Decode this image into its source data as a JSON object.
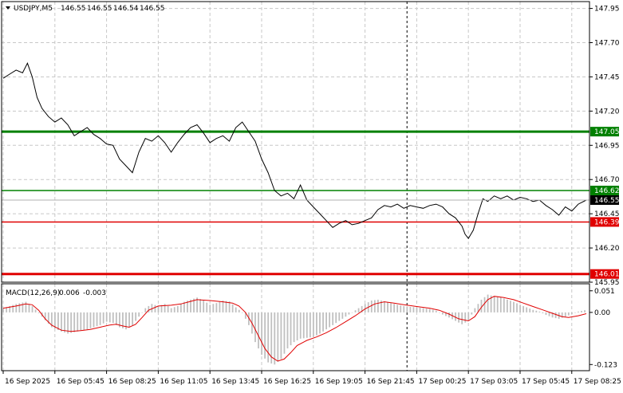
{
  "chart_data": [
    {
      "type": "line",
      "symbol_header": "USDJPY,M5",
      "ohlc": [
        "146.55",
        "146.55",
        "146.54",
        "146.55"
      ],
      "ylim": [
        145.95,
        148.0
      ],
      "y_ticks": [
        "147.95",
        "147.70",
        "147.45",
        "147.20",
        "146.95",
        "146.70",
        "146.45",
        "146.20",
        "145.95"
      ],
      "y_tick_values": [
        147.95,
        147.7,
        147.45,
        147.2,
        146.95,
        146.7,
        146.45,
        146.2,
        145.95
      ],
      "x_tick_labels": [
        "16 Sep 2025",
        "16 Sep 05:45",
        "16 Sep 08:25",
        "16 Sep 11:05",
        "16 Sep 13:45",
        "16 Sep 16:25",
        "16 Sep 19:05",
        "16 Sep 21:45",
        "17 Sep 00:25",
        "17 Sep 03:05",
        "17 Sep 05:45",
        "17 Sep 08:25"
      ],
      "x_tick_index": [
        0,
        32,
        64,
        96,
        128,
        160,
        192,
        224,
        256,
        288,
        320,
        352
      ],
      "bar_count": 362,
      "vline_index": 250,
      "current_price": {
        "label": "146.55",
        "value": 146.55
      },
      "levels": [
        {
          "label": "147.05",
          "value": 147.05,
          "color": "#008000",
          "width": 3
        },
        {
          "label": "146.62",
          "value": 146.62,
          "color": "#008000",
          "width": 1.5
        },
        {
          "label": "146.39",
          "value": 146.39,
          "color": "#e00000",
          "width": 1.5
        },
        {
          "label": "146.01",
          "value": 146.01,
          "color": "#e00000",
          "width": 3
        }
      ],
      "price_series": [
        [
          0,
          147.44
        ],
        [
          4,
          147.47
        ],
        [
          8,
          147.5
        ],
        [
          12,
          147.48
        ],
        [
          15,
          147.55
        ],
        [
          18,
          147.45
        ],
        [
          21,
          147.3
        ],
        [
          24,
          147.22
        ],
        [
          28,
          147.16
        ],
        [
          32,
          147.12
        ],
        [
          36,
          147.15
        ],
        [
          40,
          147.1
        ],
        [
          44,
          147.02
        ],
        [
          48,
          147.05
        ],
        [
          52,
          147.08
        ],
        [
          56,
          147.03
        ],
        [
          60,
          147.0
        ],
        [
          64,
          146.96
        ],
        [
          68,
          146.95
        ],
        [
          72,
          146.85
        ],
        [
          76,
          146.8
        ],
        [
          80,
          146.75
        ],
        [
          84,
          146.9
        ],
        [
          88,
          147.0
        ],
        [
          92,
          146.98
        ],
        [
          96,
          147.02
        ],
        [
          100,
          146.97
        ],
        [
          104,
          146.9
        ],
        [
          108,
          146.97
        ],
        [
          112,
          147.03
        ],
        [
          116,
          147.08
        ],
        [
          120,
          147.1
        ],
        [
          124,
          147.04
        ],
        [
          128,
          146.97
        ],
        [
          132,
          147.0
        ],
        [
          136,
          147.02
        ],
        [
          140,
          146.98
        ],
        [
          144,
          147.08
        ],
        [
          148,
          147.12
        ],
        [
          152,
          147.05
        ],
        [
          156,
          146.98
        ],
        [
          160,
          146.85
        ],
        [
          164,
          146.75
        ],
        [
          168,
          146.62
        ],
        [
          172,
          146.58
        ],
        [
          176,
          146.6
        ],
        [
          180,
          146.56
        ],
        [
          184,
          146.66
        ],
        [
          188,
          146.55
        ],
        [
          192,
          146.5
        ],
        [
          196,
          146.45
        ],
        [
          200,
          146.4
        ],
        [
          204,
          146.35
        ],
        [
          208,
          146.38
        ],
        [
          212,
          146.4
        ],
        [
          216,
          146.37
        ],
        [
          220,
          146.38
        ],
        [
          224,
          146.4
        ],
        [
          228,
          146.42
        ],
        [
          232,
          146.48
        ],
        [
          236,
          146.51
        ],
        [
          240,
          146.5
        ],
        [
          244,
          146.52
        ],
        [
          248,
          146.49
        ],
        [
          252,
          146.51
        ],
        [
          256,
          146.5
        ],
        [
          260,
          146.49
        ],
        [
          264,
          146.51
        ],
        [
          268,
          146.52
        ],
        [
          272,
          146.5
        ],
        [
          276,
          146.45
        ],
        [
          280,
          146.42
        ],
        [
          284,
          146.36
        ],
        [
          286,
          146.3
        ],
        [
          288,
          146.27
        ],
        [
          291,
          146.33
        ],
        [
          294,
          146.45
        ],
        [
          297,
          146.56
        ],
        [
          300,
          146.54
        ],
        [
          304,
          146.58
        ],
        [
          308,
          146.56
        ],
        [
          312,
          146.58
        ],
        [
          316,
          146.55
        ],
        [
          320,
          146.57
        ],
        [
          324,
          146.56
        ],
        [
          328,
          146.54
        ],
        [
          332,
          146.55
        ],
        [
          336,
          146.51
        ],
        [
          340,
          146.48
        ],
        [
          344,
          146.44
        ],
        [
          348,
          146.5
        ],
        [
          352,
          146.47
        ],
        [
          356,
          146.52
        ],
        [
          361,
          146.55
        ]
      ],
      "macd": {
        "label": "MACD(12,26,9)",
        "macd_value": "0.006",
        "signal_value": "-0.003",
        "ylim": [
          -0.13,
          0.06
        ],
        "y_ticks": [
          "0.051",
          "0.00",
          "-0.123"
        ],
        "y_tick_values": [
          0.051,
          0.0,
          -0.123
        ],
        "histogram_color": "#c0c0c0",
        "signal_color": "#e00000",
        "histogram": [
          [
            0,
            0.01
          ],
          [
            8,
            0.02
          ],
          [
            14,
            0.025
          ],
          [
            18,
            0.015
          ],
          [
            24,
            -0.01
          ],
          [
            30,
            -0.035
          ],
          [
            36,
            -0.045
          ],
          [
            40,
            -0.05
          ],
          [
            46,
            -0.045
          ],
          [
            52,
            -0.04
          ],
          [
            56,
            -0.035
          ],
          [
            60,
            -0.03
          ],
          [
            64,
            -0.022
          ],
          [
            68,
            -0.025
          ],
          [
            72,
            -0.035
          ],
          [
            76,
            -0.04
          ],
          [
            80,
            -0.03
          ],
          [
            84,
            -0.01
          ],
          [
            88,
            0.01
          ],
          [
            92,
            0.02
          ],
          [
            96,
            0.015
          ],
          [
            100,
            0.02
          ],
          [
            104,
            0.01
          ],
          [
            108,
            0.015
          ],
          [
            112,
            0.025
          ],
          [
            116,
            0.03
          ],
          [
            120,
            0.035
          ],
          [
            124,
            0.028
          ],
          [
            128,
            0.018
          ],
          [
            132,
            0.022
          ],
          [
            136,
            0.028
          ],
          [
            140,
            0.026
          ],
          [
            144,
            0.012
          ],
          [
            148,
            0.0
          ],
          [
            152,
            -0.03
          ],
          [
            156,
            -0.07
          ],
          [
            160,
            -0.1
          ],
          [
            164,
            -0.118
          ],
          [
            168,
            -0.123
          ],
          [
            172,
            -0.11
          ],
          [
            176,
            -0.085
          ],
          [
            180,
            -0.07
          ],
          [
            184,
            -0.062
          ],
          [
            188,
            -0.06
          ],
          [
            192,
            -0.058
          ],
          [
            196,
            -0.05
          ],
          [
            200,
            -0.04
          ],
          [
            204,
            -0.03
          ],
          [
            208,
            -0.02
          ],
          [
            212,
            -0.01
          ],
          [
            216,
            0.0
          ],
          [
            220,
            0.01
          ],
          [
            224,
            0.02
          ],
          [
            228,
            0.028
          ],
          [
            232,
            0.03
          ],
          [
            236,
            0.026
          ],
          [
            240,
            0.022
          ],
          [
            244,
            0.018
          ],
          [
            248,
            0.015
          ],
          [
            252,
            0.013
          ],
          [
            256,
            0.012
          ],
          [
            260,
            0.01
          ],
          [
            264,
            0.008
          ],
          [
            268,
            0.004
          ],
          [
            272,
            -0.005
          ],
          [
            276,
            -0.012
          ],
          [
            280,
            -0.02
          ],
          [
            284,
            -0.028
          ],
          [
            288,
            -0.02
          ],
          [
            292,
            0.01
          ],
          [
            296,
            0.03
          ],
          [
            300,
            0.042
          ],
          [
            304,
            0.038
          ],
          [
            308,
            0.036
          ],
          [
            312,
            0.03
          ],
          [
            316,
            0.025
          ],
          [
            320,
            0.018
          ],
          [
            324,
            0.012
          ],
          [
            328,
            0.006
          ],
          [
            332,
            0.002
          ],
          [
            336,
            -0.006
          ],
          [
            340,
            -0.012
          ],
          [
            344,
            -0.015
          ],
          [
            348,
            -0.01
          ],
          [
            352,
            -0.004
          ],
          [
            356,
            0.002
          ],
          [
            361,
            0.006
          ]
        ],
        "signal": [
          [
            0,
            0.01
          ],
          [
            8,
            0.015
          ],
          [
            14,
            0.02
          ],
          [
            18,
            0.018
          ],
          [
            22,
            0.005
          ],
          [
            26,
            -0.015
          ],
          [
            30,
            -0.03
          ],
          [
            36,
            -0.042
          ],
          [
            42,
            -0.045
          ],
          [
            48,
            -0.043
          ],
          [
            54,
            -0.04
          ],
          [
            60,
            -0.035
          ],
          [
            66,
            -0.03
          ],
          [
            70,
            -0.028
          ],
          [
            74,
            -0.032
          ],
          [
            78,
            -0.035
          ],
          [
            82,
            -0.028
          ],
          [
            86,
            -0.012
          ],
          [
            90,
            0.005
          ],
          [
            96,
            0.015
          ],
          [
            104,
            0.017
          ],
          [
            110,
            0.02
          ],
          [
            116,
            0.026
          ],
          [
            120,
            0.03
          ],
          [
            128,
            0.028
          ],
          [
            136,
            0.025
          ],
          [
            142,
            0.022
          ],
          [
            146,
            0.015
          ],
          [
            150,
            0.0
          ],
          [
            154,
            -0.025
          ],
          [
            158,
            -0.055
          ],
          [
            162,
            -0.085
          ],
          [
            166,
            -0.105
          ],
          [
            170,
            -0.115
          ],
          [
            174,
            -0.11
          ],
          [
            178,
            -0.095
          ],
          [
            182,
            -0.078
          ],
          [
            188,
            -0.066
          ],
          [
            194,
            -0.058
          ],
          [
            200,
            -0.048
          ],
          [
            206,
            -0.036
          ],
          [
            212,
            -0.022
          ],
          [
            218,
            -0.008
          ],
          [
            224,
            0.008
          ],
          [
            230,
            0.02
          ],
          [
            236,
            0.025
          ],
          [
            242,
            0.022
          ],
          [
            248,
            0.018
          ],
          [
            256,
            0.014
          ],
          [
            264,
            0.01
          ],
          [
            270,
            0.005
          ],
          [
            276,
            -0.004
          ],
          [
            282,
            -0.015
          ],
          [
            288,
            -0.02
          ],
          [
            292,
            -0.01
          ],
          [
            296,
            0.012
          ],
          [
            300,
            0.03
          ],
          [
            304,
            0.038
          ],
          [
            310,
            0.035
          ],
          [
            316,
            0.03
          ],
          [
            322,
            0.022
          ],
          [
            328,
            0.014
          ],
          [
            334,
            0.006
          ],
          [
            340,
            -0.002
          ],
          [
            346,
            -0.01
          ],
          [
            350,
            -0.012
          ],
          [
            356,
            -0.008
          ],
          [
            361,
            -0.003
          ]
        ]
      }
    }
  ]
}
